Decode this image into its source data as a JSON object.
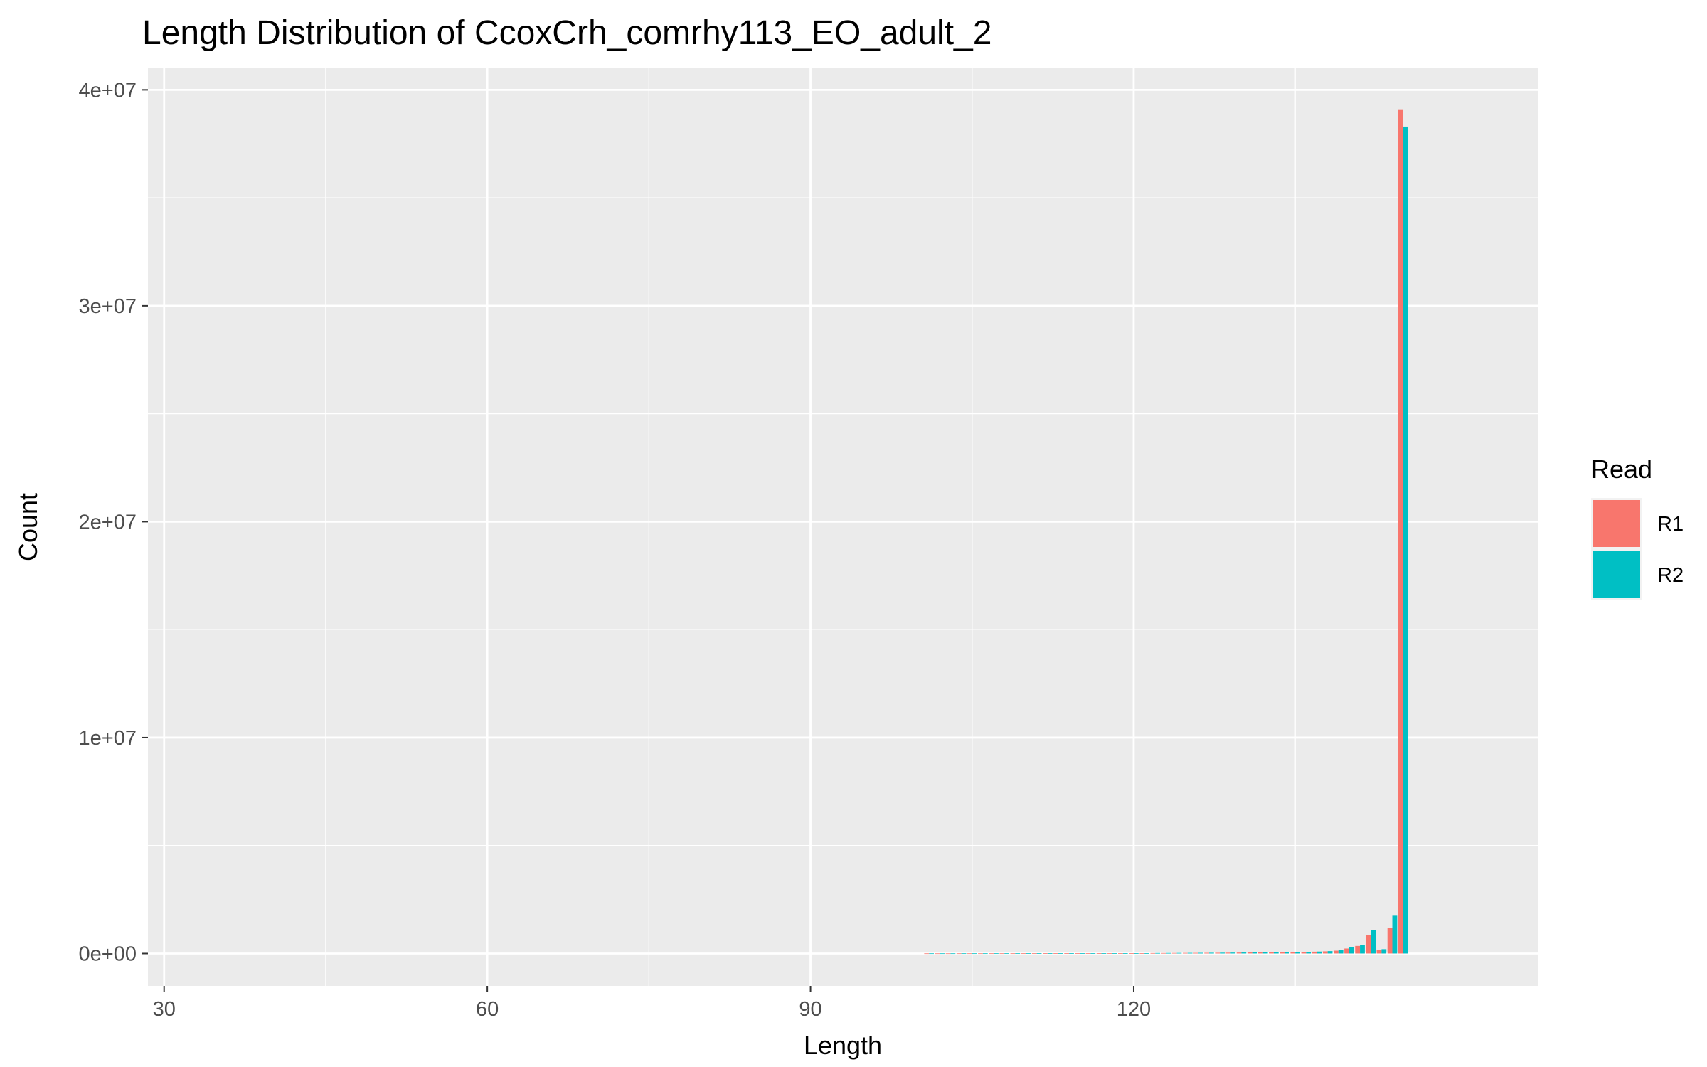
{
  "chart_data": {
    "type": "bar",
    "title": "Length Distribution of CcoxCrh_comrhy113_EO_adult_2",
    "xlabel": "Length",
    "ylabel": "Count",
    "xlim": [
      28.5,
      157.5
    ],
    "ylim": [
      -1500000,
      41000000
    ],
    "x_ticks": [
      30,
      60,
      90,
      120
    ],
    "x_tick_labels": [
      "30",
      "60",
      "90",
      "120"
    ],
    "y_ticks": [
      0,
      10000000,
      20000000,
      30000000,
      40000000
    ],
    "y_tick_labels": [
      "0e+00",
      "1e+07",
      "2e+07",
      "3e+07",
      "4e+07"
    ],
    "legend": {
      "title": "Read",
      "position": "right",
      "entries": [
        {
          "name": "R1",
          "color": "#F8766D"
        },
        {
          "name": "R2",
          "color": "#00BFC4"
        }
      ]
    },
    "grid": true,
    "x": [
      101,
      102,
      103,
      104,
      105,
      106,
      107,
      108,
      109,
      110,
      111,
      112,
      113,
      114,
      115,
      116,
      117,
      118,
      119,
      120,
      121,
      122,
      123,
      124,
      125,
      126,
      127,
      128,
      129,
      130,
      131,
      132,
      133,
      134,
      135,
      136,
      137,
      138,
      139,
      140,
      141,
      142,
      143,
      144,
      145,
      146,
      147,
      148,
      149,
      150
    ],
    "series": [
      {
        "name": "R1",
        "color": "#F8766D",
        "values": [
          5000,
          5000,
          5000,
          6000,
          6000,
          6000,
          7000,
          7000,
          7000,
          8000,
          8000,
          9000,
          9000,
          10000,
          10000,
          11000,
          11000,
          12000,
          13000,
          14000,
          15000,
          20000,
          22000,
          25000,
          28000,
          30000,
          33000,
          36000,
          40000,
          44000,
          48000,
          52000,
          57000,
          62000,
          68000,
          75000,
          85000,
          100000,
          130000,
          230000,
          350000,
          850000,
          150000,
          1200000,
          39100000,
          0,
          0,
          0,
          0,
          0
        ]
      },
      {
        "name": "R2",
        "color": "#00BFC4",
        "values": [
          6000,
          6000,
          6000,
          7000,
          7000,
          7000,
          8000,
          8000,
          8000,
          9000,
          9000,
          10000,
          10000,
          11000,
          11000,
          12000,
          12000,
          13000,
          14000,
          15000,
          16000,
          22000,
          24000,
          27000,
          30000,
          33000,
          36000,
          39000,
          43000,
          47000,
          51000,
          56000,
          61000,
          67000,
          73000,
          80000,
          90000,
          110000,
          150000,
          300000,
          400000,
          1100000,
          200000,
          1750000,
          38300000,
          0,
          0,
          0,
          0,
          0
        ]
      }
    ]
  }
}
